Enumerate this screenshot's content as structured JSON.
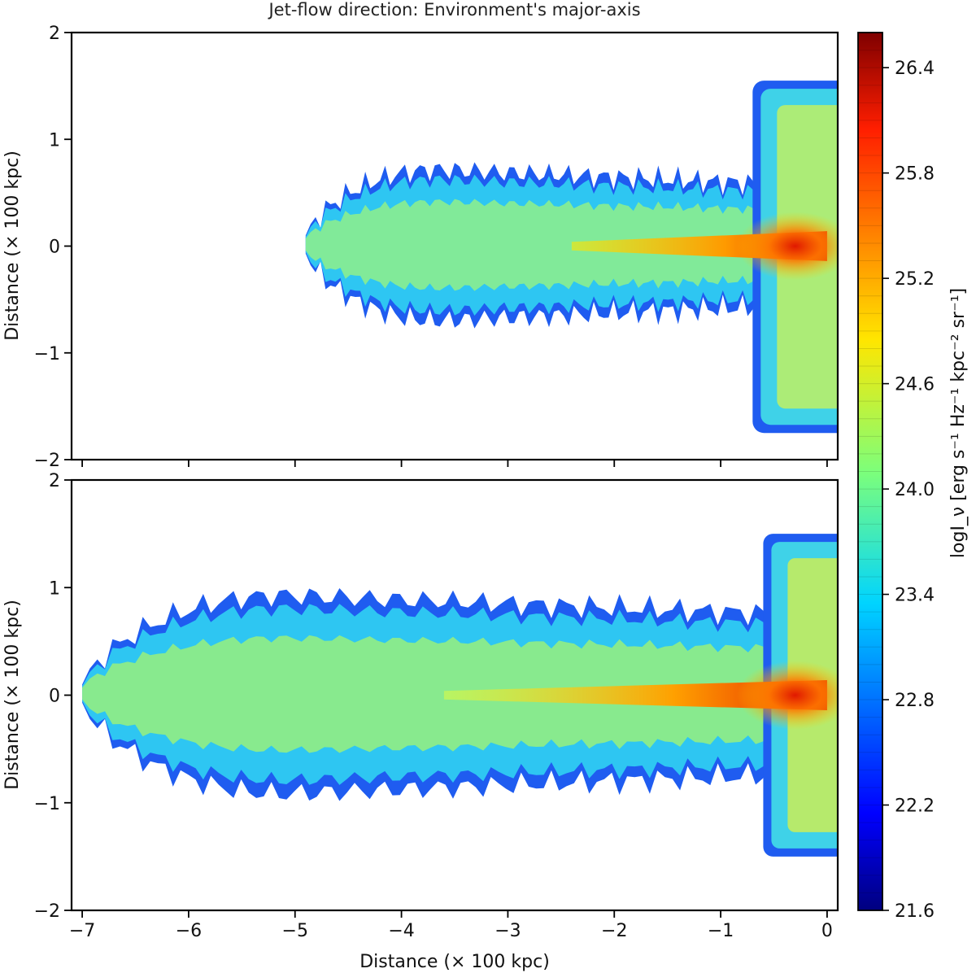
{
  "chart_data": [
    {
      "type": "heatmap",
      "title": "Jet-flow direction: Environment's major-axis",
      "xlabel": "",
      "ylabel": "Distance (× 100 kpc)",
      "xlim": [
        -7.1,
        0.1
      ],
      "ylim": [
        -2,
        2
      ],
      "xticks": [],
      "yticks": [
        "2",
        "1",
        "0",
        "−1",
        "−2"
      ],
      "ytick_values": [
        2,
        1,
        0,
        -1,
        -2
      ],
      "grid": false,
      "lobe": {
        "left_edge": -4.9,
        "half_width": 0.72,
        "jet_start": -2.4
      },
      "cocoon": {
        "x_range": [
          -0.7,
          0.1
        ],
        "y_range": [
          -1.75,
          1.55
        ]
      }
    },
    {
      "type": "heatmap",
      "title": "",
      "xlabel": "Distance (× 100 kpc)",
      "ylabel": "Distance (× 100 kpc)",
      "xlim": [
        -7.1,
        0.1
      ],
      "ylim": [
        -2,
        2
      ],
      "xticks": [
        "−7",
        "−6",
        "−5",
        "−4",
        "−3",
        "−2",
        "−1",
        "0"
      ],
      "xtick_values": [
        -7,
        -6,
        -5,
        -4,
        -3,
        -2,
        -1,
        0
      ],
      "yticks": [
        "2",
        "1",
        "0",
        "−1",
        "−2"
      ],
      "ytick_values": [
        2,
        1,
        0,
        -1,
        -2
      ],
      "grid": false,
      "lobe": {
        "left_edge": -7.0,
        "half_width": 0.95,
        "jet_start": -3.6
      },
      "cocoon": {
        "x_range": [
          -0.6,
          0.1
        ],
        "y_range": [
          -1.5,
          1.5
        ]
      }
    }
  ],
  "colorbar": {
    "label": "logI_ν [erg s⁻¹ Hz⁻¹ kpc⁻² sr⁻¹]",
    "range": [
      21.6,
      26.6
    ],
    "ticks": [
      "26.4",
      "25.8",
      "25.2",
      "24.6",
      "24.0",
      "23.4",
      "22.8",
      "22.2",
      "21.6"
    ],
    "tick_values": [
      26.4,
      25.8,
      25.2,
      24.6,
      24.0,
      23.4,
      22.8,
      22.2,
      21.6
    ],
    "colormap": "jet"
  }
}
